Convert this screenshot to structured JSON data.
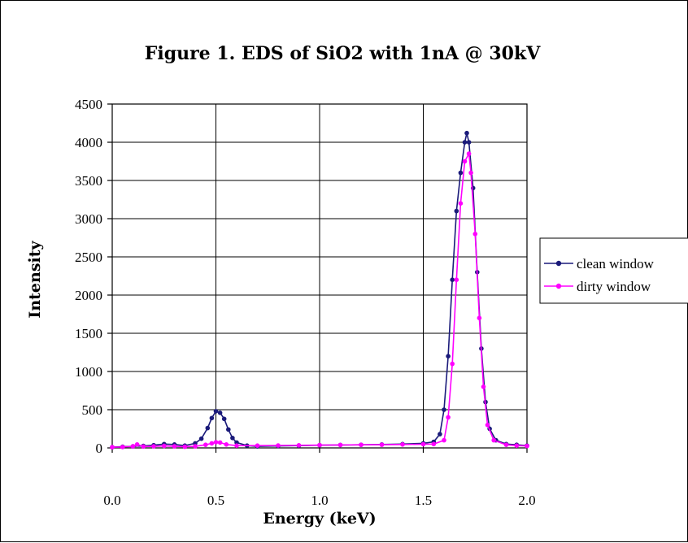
{
  "chart_data": {
    "type": "line",
    "title": "Figure 1.  EDS of SiO2 with 1nA @ 30kV",
    "xlabel": "Energy (keV)",
    "ylabel": "Intensity",
    "xlim": [
      0.0,
      2.0
    ],
    "ylim": [
      0,
      4500
    ],
    "x_ticks": [
      "0.0",
      "0.5",
      "1.0",
      "1.5",
      "2.0"
    ],
    "x_tick_values": [
      0.0,
      0.5,
      1.0,
      1.5,
      2.0
    ],
    "y_ticks": [
      "0",
      "500",
      "1000",
      "1500",
      "2000",
      "2500",
      "3000",
      "3500",
      "4000",
      "4500"
    ],
    "y_tick_values": [
      0,
      500,
      1000,
      1500,
      2000,
      2500,
      3000,
      3500,
      4000,
      4500
    ],
    "grid": true,
    "legend_position": "right",
    "series": [
      {
        "name": "clean window",
        "color": "#1a1a7a",
        "marker": "circle",
        "points": [
          [
            0.0,
            10
          ],
          [
            0.05,
            15
          ],
          [
            0.1,
            20
          ],
          [
            0.15,
            25
          ],
          [
            0.2,
            35
          ],
          [
            0.25,
            50
          ],
          [
            0.3,
            45
          ],
          [
            0.35,
            30
          ],
          [
            0.4,
            60
          ],
          [
            0.43,
            120
          ],
          [
            0.46,
            260
          ],
          [
            0.48,
            390
          ],
          [
            0.5,
            480
          ],
          [
            0.52,
            460
          ],
          [
            0.54,
            380
          ],
          [
            0.56,
            240
          ],
          [
            0.58,
            130
          ],
          [
            0.6,
            70
          ],
          [
            0.65,
            30
          ],
          [
            0.7,
            20
          ],
          [
            0.8,
            25
          ],
          [
            0.9,
            30
          ],
          [
            1.0,
            35
          ],
          [
            1.1,
            38
          ],
          [
            1.2,
            40
          ],
          [
            1.3,
            45
          ],
          [
            1.4,
            50
          ],
          [
            1.5,
            60
          ],
          [
            1.55,
            80
          ],
          [
            1.58,
            180
          ],
          [
            1.6,
            500
          ],
          [
            1.62,
            1200
          ],
          [
            1.64,
            2200
          ],
          [
            1.66,
            3100
          ],
          [
            1.68,
            3600
          ],
          [
            1.7,
            4000
          ],
          [
            1.71,
            4120
          ],
          [
            1.72,
            4000
          ],
          [
            1.74,
            3400
          ],
          [
            1.76,
            2300
          ],
          [
            1.78,
            1300
          ],
          [
            1.8,
            600
          ],
          [
            1.82,
            250
          ],
          [
            1.85,
            100
          ],
          [
            1.9,
            50
          ],
          [
            1.95,
            40
          ],
          [
            2.0,
            30
          ]
        ]
      },
      {
        "name": "dirty window",
        "color": "#ff00ff",
        "marker": "circle",
        "points": [
          [
            0.0,
            10
          ],
          [
            0.05,
            12
          ],
          [
            0.1,
            20
          ],
          [
            0.12,
            45
          ],
          [
            0.15,
            18
          ],
          [
            0.2,
            20
          ],
          [
            0.25,
            25
          ],
          [
            0.3,
            20
          ],
          [
            0.35,
            15
          ],
          [
            0.4,
            20
          ],
          [
            0.45,
            40
          ],
          [
            0.48,
            60
          ],
          [
            0.5,
            75
          ],
          [
            0.52,
            70
          ],
          [
            0.55,
            45
          ],
          [
            0.6,
            30
          ],
          [
            0.7,
            30
          ],
          [
            0.8,
            32
          ],
          [
            0.9,
            34
          ],
          [
            1.0,
            36
          ],
          [
            1.1,
            38
          ],
          [
            1.2,
            40
          ],
          [
            1.3,
            42
          ],
          [
            1.4,
            45
          ],
          [
            1.5,
            48
          ],
          [
            1.55,
            50
          ],
          [
            1.6,
            100
          ],
          [
            1.62,
            400
          ],
          [
            1.64,
            1100
          ],
          [
            1.66,
            2200
          ],
          [
            1.68,
            3200
          ],
          [
            1.7,
            3750
          ],
          [
            1.72,
            3850
          ],
          [
            1.73,
            3600
          ],
          [
            1.75,
            2800
          ],
          [
            1.77,
            1700
          ],
          [
            1.79,
            800
          ],
          [
            1.81,
            300
          ],
          [
            1.84,
            100
          ],
          [
            1.9,
            40
          ],
          [
            1.95,
            30
          ],
          [
            2.0,
            25
          ]
        ]
      }
    ]
  }
}
